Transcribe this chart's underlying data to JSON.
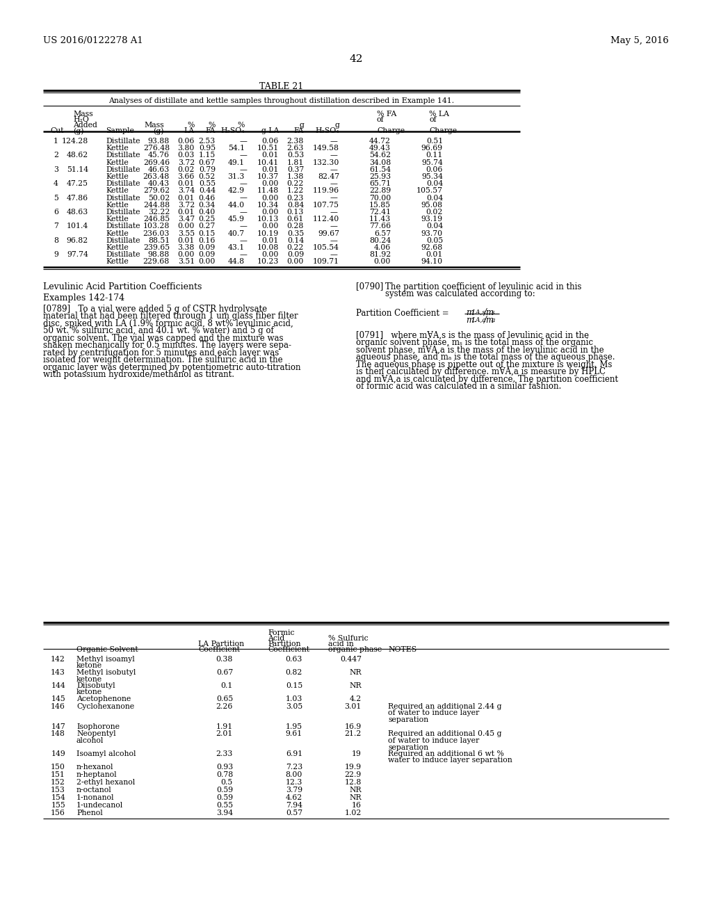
{
  "header_left": "US 2016/0122278 A1",
  "header_right": "May 5, 2016",
  "page_number": "42",
  "table_title": "TABLE 21",
  "table_subtitle": "Analyses of distillate and kettle samples throughout distillation described in Example 141.",
  "table_data": [
    [
      "1",
      "124.28",
      "Distillate",
      "93.88",
      "0.06",
      "2.53",
      "—",
      "0.06",
      "2.38",
      "—",
      "44.72",
      "0.51"
    ],
    [
      "",
      "",
      "Kettle",
      "276.48",
      "3.80",
      "0.95",
      "54.1",
      "10.51",
      "2.63",
      "149.58",
      "49.43",
      "96.69"
    ],
    [
      "2",
      "48.62",
      "Distillate",
      "45.76",
      "0.03",
      "1.15",
      "—",
      "0.01",
      "0.53",
      "—",
      "54.62",
      "0.11"
    ],
    [
      "",
      "",
      "Kettle",
      "269.46",
      "3.72",
      "0.67",
      "49.1",
      "10.41",
      "1.81",
      "132.30",
      "34.08",
      "95.74"
    ],
    [
      "3",
      "51.14",
      "Distillate",
      "46.63",
      "0.02",
      "0.79",
      "—",
      "0.01",
      "0.37",
      "—",
      "61.54",
      "0.06"
    ],
    [
      "",
      "",
      "Kettle",
      "263.48",
      "3.66",
      "0.52",
      "31.3",
      "10.37",
      "1.38",
      "82.47",
      "25.93",
      "95.34"
    ],
    [
      "4",
      "47.25",
      "Distillate",
      "40.43",
      "0.01",
      "0.55",
      "—",
      "0.00",
      "0.22",
      "—",
      "65.71",
      "0.04"
    ],
    [
      "",
      "",
      "Kettle",
      "279.62",
      "3.74",
      "0.44",
      "42.9",
      "11.48",
      "1.22",
      "119.96",
      "22.89",
      "105.57"
    ],
    [
      "5",
      "47.86",
      "Distillate",
      "50.02",
      "0.01",
      "0.46",
      "—",
      "0.00",
      "0.23",
      "—",
      "70.00",
      "0.04"
    ],
    [
      "",
      "",
      "Kettle",
      "244.88",
      "3.72",
      "0.34",
      "44.0",
      "10.34",
      "0.84",
      "107.75",
      "15.85",
      "95.08"
    ],
    [
      "6",
      "48.63",
      "Distillate",
      "32.22",
      "0.01",
      "0.40",
      "—",
      "0.00",
      "0.13",
      "—",
      "72.41",
      "0.02"
    ],
    [
      "",
      "",
      "Kettle",
      "246.85",
      "3.47",
      "0.25",
      "45.9",
      "10.13",
      "0.61",
      "112.40",
      "11.43",
      "93.19"
    ],
    [
      "7",
      "101.4",
      "Distillate",
      "103.28",
      "0.00",
      "0.27",
      "—",
      "0.00",
      "0.28",
      "—",
      "77.66",
      "0.04"
    ],
    [
      "",
      "",
      "Kettle",
      "236.03",
      "3.55",
      "0.15",
      "40.7",
      "10.19",
      "0.35",
      "99.67",
      "6.57",
      "93.70"
    ],
    [
      "8",
      "96.82",
      "Distillate",
      "88.51",
      "0.01",
      "0.16",
      "—",
      "0.01",
      "0.14",
      "—",
      "80.24",
      "0.05"
    ],
    [
      "",
      "",
      "Kettle",
      "239.65",
      "3.38",
      "0.09",
      "43.1",
      "10.08",
      "0.22",
      "105.54",
      "4.06",
      "92.68"
    ],
    [
      "9",
      "97.74",
      "Distillate",
      "98.88",
      "0.00",
      "0.09",
      "—",
      "0.00",
      "0.09",
      "—",
      "81.92",
      "0.01"
    ],
    [
      "",
      "",
      "Kettle",
      "229.68",
      "3.51",
      "0.00",
      "44.8",
      "10.23",
      "0.00",
      "109.71",
      "0.00",
      "94.10"
    ]
  ],
  "section_title_left": "Levulinic Acid Partition Coefficients",
  "section_subtitle_left": "Examples 142-174",
  "p0789_lines": [
    "[0789]   To a vial were added 5 g of CSTR hydrolysate",
    "material that had been filtered through 1 um glass fiber filter",
    "disc, spiked with LA (1.9% formic acid, 8 wt% levulinic acid,",
    "50 wt. % sulfuric acid, and 40.1 wt. % water) and 5 g of",
    "organic solvent. The vial was capped and the mixture was",
    "shaken mechanically for 0.5 minutes. The layers were sepa-",
    "rated by centrifugation for 5 minutes and each layer was",
    "isolated for weight determination. The sulfuric acid in the",
    "organic layer was determined by potentiometric auto-titration",
    "with potassium hydroxide/methanol as titrant."
  ],
  "p0790_lines": [
    "[0790]   The partition coefficient of levulinic acid in this",
    "system was calculated according to:"
  ],
  "p0791_lines": [
    "[0791]   where mⱯA,s is the mass of levulinic acid in the",
    "organic solvent phase, mₛ is the total mass of the organic",
    "solvent phase, mⱯA,a is the mass of the levulinic acid in the",
    "aqueous phase, and mₐ is the total mass of the aqueous phase.",
    "The aqueous phase is pipette out of the mixture is weight. Ms",
    "is then calculated by difference. mⱯA,a is measure by HPLC",
    "and mⱯA,a is calculated by difference. The partition coefficient",
    "of formic acid was calculated in a similar fashion."
  ],
  "table2_data": [
    [
      "142",
      "Methyl isoamyl\nketone",
      "0.38",
      "0.63",
      "0.447",
      ""
    ],
    [
      "143",
      "Methyl isobutyl\nketone",
      "0.67",
      "0.82",
      "NR",
      ""
    ],
    [
      "144",
      "Diisobutyl\nketone",
      "0.1",
      "0.15",
      "NR",
      ""
    ],
    [
      "145",
      "Acetophenone",
      "0.65",
      "1.03",
      "4.2",
      ""
    ],
    [
      "146",
      "Cyclohexanone",
      "2.26",
      "3.05",
      "3.01",
      "Required an additional 2.44 g\nof water to induce layer\nseparation"
    ],
    [
      "147",
      "Isophorone",
      "1.91",
      "1.95",
      "16.9",
      ""
    ],
    [
      "148",
      "Neopentyl\nalcohol",
      "2.01",
      "9.61",
      "21.2",
      "Required an additional 0.45 g\nof water to induce layer\nseparation"
    ],
    [
      "149",
      "Isoamyl alcohol",
      "2.33",
      "6.91",
      "19",
      "Required an additional 6 wt %\nwater to induce layer separation"
    ],
    [
      "150",
      "n-hexanol",
      "0.93",
      "7.23",
      "19.9",
      ""
    ],
    [
      "151",
      "n-heptanol",
      "0.78",
      "8.00",
      "22.9",
      ""
    ],
    [
      "152",
      "2-ethyl hexanol",
      "0.5",
      "12.3",
      "12.8",
      ""
    ],
    [
      "153",
      "n-octanol",
      "0.59",
      "3.79",
      "NR",
      ""
    ],
    [
      "154",
      "1-nonanol",
      "0.59",
      "4.62",
      "NR",
      ""
    ],
    [
      "155",
      "1-undecanol",
      "0.55",
      "7.94",
      "16",
      ""
    ],
    [
      "156",
      "Phenol",
      "3.94",
      "0.57",
      "1.02",
      ""
    ]
  ]
}
